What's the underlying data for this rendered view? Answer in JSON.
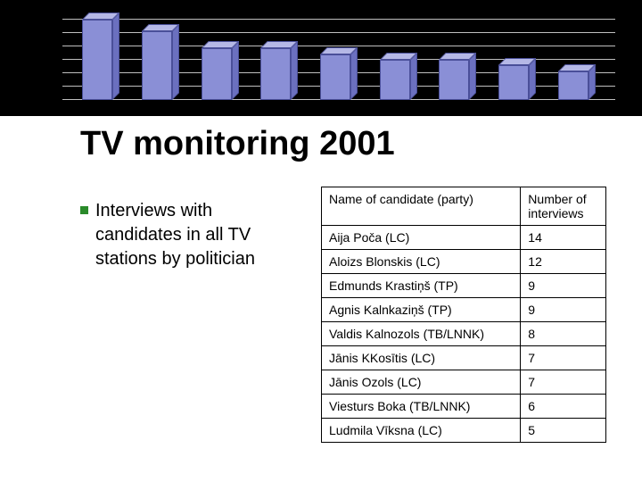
{
  "chart": {
    "type": "bar",
    "background_color": "#000000",
    "grid_color": "#bfbfbf",
    "bar_front_color": "#8a8fd6",
    "bar_top_color": "#b5b8e6",
    "bar_side_color": "#6b70bf",
    "bar_border_color": "#4a4f99",
    "gridline_count": 7,
    "max_value": 14,
    "values": [
      14,
      12,
      9,
      9,
      8,
      7,
      7,
      6,
      5
    ]
  },
  "title": "TV monitoring 2001",
  "bullet": {
    "text": "Interviews with candidates in all TV stations by politician",
    "marker_color": "#2a8a2a"
  },
  "table": {
    "columns": [
      {
        "label": "Name of candidate (party)",
        "key": "name"
      },
      {
        "label": "Number of interviews",
        "key": "count"
      }
    ],
    "rows": [
      {
        "name": "Aija Poča (LC)",
        "count": "14"
      },
      {
        "name": "Aloizs Blonskis (LC)",
        "count": "12"
      },
      {
        "name": "Edmunds Krastiņš (TP)",
        "count": "9"
      },
      {
        "name": "Agnis Kalnkaziņš (TP)",
        "count": "9"
      },
      {
        "name": "Valdis Kalnozols (TB/LNNK)",
        "count": "8"
      },
      {
        "name": "Jānis KKosītis (LC)",
        "count": "7"
      },
      {
        "name": "Jānis Ozols (LC)",
        "count": "7"
      },
      {
        "name": "Viesturs Boka (TB/LNNK)",
        "count": "6"
      },
      {
        "name": "Ludmila Vīksna (LC)",
        "count": "5"
      }
    ]
  }
}
